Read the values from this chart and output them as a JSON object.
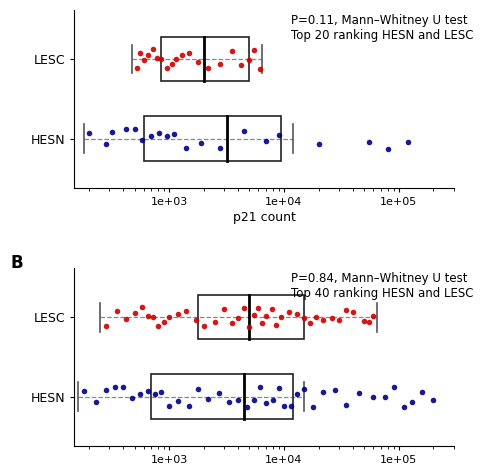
{
  "panel_A": {
    "annotation": "P=0.11, Mann–Whitney U test\nTop 20 ranking HESN and LESC",
    "LESC": {
      "color": "#cc0000",
      "points": [
        530,
        560,
        600,
        650,
        720,
        780,
        850,
        950,
        1050,
        1150,
        1300,
        1500,
        1800,
        2200,
        2800,
        3500,
        4200,
        5000,
        5500,
        6200
      ],
      "whisker_low": 480,
      "whisker_high": 6500,
      "q1": 850,
      "median": 2000,
      "q3": 5000
    },
    "HESN": {
      "color": "#00008b",
      "points": [
        200,
        280,
        320,
        420,
        500,
        580,
        700,
        820,
        950,
        1100,
        1400,
        1900,
        2800,
        4500,
        7000,
        9000,
        20000,
        55000,
        80000,
        120000
      ],
      "whisker_low": 180,
      "whisker_high": 12000,
      "q1": 600,
      "median": 3200,
      "q3": 9500
    },
    "xlim_log": [
      150,
      300000
    ],
    "xticks": [
      1000,
      10000,
      100000
    ],
    "xlabel": "p21 count"
  },
  "panel_B": {
    "annotation": "P=0.84, Mann–Whitney U test\nTop 40 ranking HESN and LESC",
    "LESC": {
      "color": "#cc0000",
      "points": [
        280,
        350,
        420,
        500,
        580,
        650,
        720,
        800,
        900,
        1000,
        1200,
        1400,
        1700,
        2000,
        2500,
        3000,
        3500,
        4000,
        4500,
        5000,
        5500,
        6000,
        6500,
        7000,
        7800,
        8500,
        9500,
        11000,
        13000,
        15000,
        17000,
        19000,
        22000,
        26000,
        30000,
        35000,
        40000,
        50000,
        60000,
        55000
      ],
      "whisker_low": 250,
      "whisker_high": 65000,
      "q1": 1800,
      "median": 5000,
      "q3": 15000
    },
    "HESN": {
      "color": "#00008b",
      "points": [
        180,
        230,
        280,
        340,
        400,
        480,
        560,
        650,
        750,
        850,
        1000,
        1200,
        1500,
        1800,
        2200,
        2700,
        3300,
        4000,
        4800,
        5500,
        6200,
        7000,
        8000,
        9000,
        10000,
        11500,
        13000,
        15000,
        18000,
        22000,
        28000,
        35000,
        45000,
        60000,
        75000,
        90000,
        110000,
        130000,
        160000,
        200000
      ],
      "whisker_low": 160,
      "whisker_high": 15000,
      "q1": 700,
      "median": 4500,
      "q3": 12000
    },
    "xlim_log": [
      150,
      300000
    ],
    "xticks": [
      1000,
      10000,
      100000
    ],
    "xlabel": ""
  },
  "background_color": "#ffffff",
  "box_facecolor": "none",
  "box_edgecolor": "#222222",
  "whisker_color": "#555555",
  "dashed_color": "#888888",
  "annot_fontsize": 8.5,
  "label_fontsize": 9,
  "tick_fontsize": 8,
  "point_size": 16
}
